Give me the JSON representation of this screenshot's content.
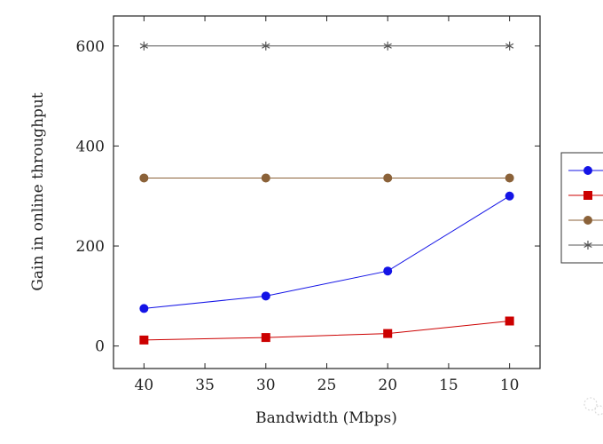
{
  "chart_data": {
    "type": "line",
    "xlabel": "Bandwidth (Mbps)",
    "ylabel": "Gain in online throughput",
    "x_reversed": true,
    "xlim": [
      42.5,
      7.5
    ],
    "ylim": [
      -45,
      660
    ],
    "x_ticks": [
      40,
      35,
      30,
      25,
      20,
      15,
      10
    ],
    "y_ticks": [
      0,
      200,
      400,
      600
    ],
    "x": [
      40,
      30,
      20,
      10
    ],
    "grid": false,
    "legend_position": "right (partially cropped)",
    "series": [
      {
        "values": [
          75,
          100,
          150,
          300
        ],
        "color": "#1414e6",
        "marker": "circle"
      },
      {
        "values": [
          12,
          17,
          25,
          50
        ],
        "color": "#cc0000",
        "marker": "square"
      },
      {
        "values": [
          336,
          336,
          336,
          336
        ],
        "color": "#8b6239",
        "marker": "circle"
      },
      {
        "values": [
          600,
          600,
          600,
          600
        ],
        "color": "#555555",
        "marker": "star"
      }
    ]
  }
}
